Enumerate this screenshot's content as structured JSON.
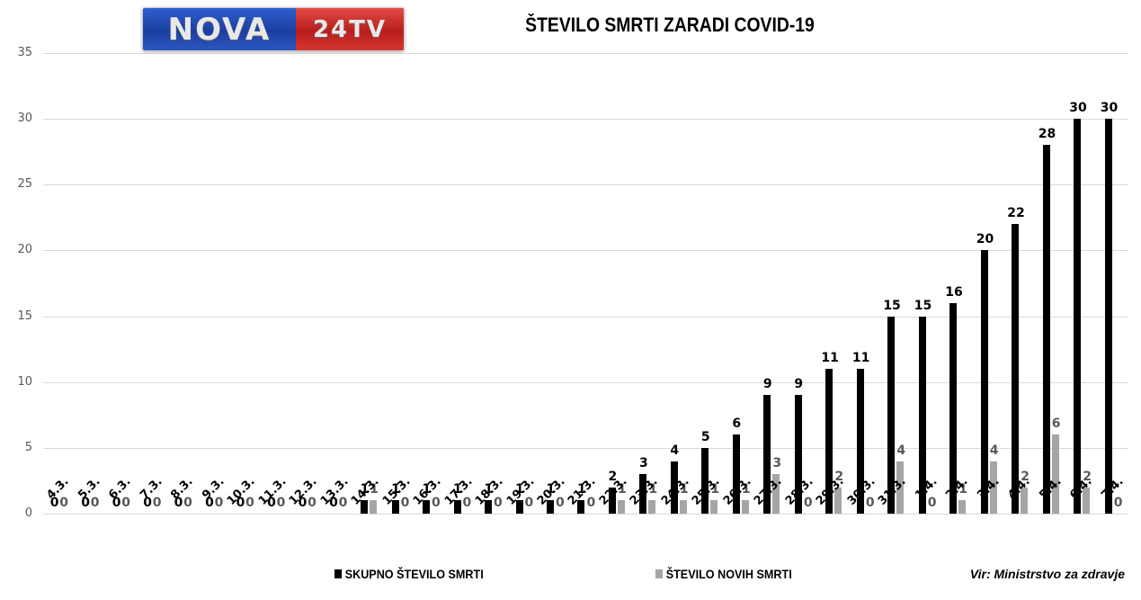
{
  "header": {
    "logo_left": "NOVA",
    "logo_right": "24TV",
    "title": "ŠTEVILO SMRTI ZARADI COVID-19"
  },
  "legend": {
    "total_label": "SKUPNO ŠTEVILO SMRTI",
    "new_label": "ŠTEVILO NOVIH SMRTI",
    "total_color": "#000000",
    "new_color": "#a5a5a5"
  },
  "source": "Vir: Ministrstvo za zdravje",
  "chart_data": {
    "type": "bar",
    "title": "ŠTEVILO SMRTI ZARADI COVID-19",
    "xlabel": "",
    "ylabel": "",
    "ylim": [
      0,
      35
    ],
    "yticks": [
      0,
      5,
      10,
      15,
      20,
      25,
      30,
      35
    ],
    "grid": true,
    "legend_position": "bottom",
    "categories": [
      "4.3.",
      "5.3.",
      "6.3.",
      "7.3.",
      "8.3.",
      "9.3.",
      "10.3.",
      "11.3.",
      "12.3.",
      "13.3.",
      "14.3.",
      "15.3.",
      "16.3.",
      "17.3.",
      "18.3.",
      "19.3.",
      "20.3.",
      "21.3.",
      "22.3.",
      "23.3.",
      "24.3.",
      "25.3.",
      "26.3.",
      "27.3.",
      "28.3.",
      "29.3.",
      "30.3.",
      "31.3.",
      "1.4.",
      "2.4.",
      "3.4.",
      "4.4.",
      "5.4.",
      "6.4.",
      "7.4."
    ],
    "series": [
      {
        "name": "SKUPNO ŠTEVILO SMRTI",
        "color": "#000000",
        "values": [
          0,
          0,
          0,
          0,
          0,
          0,
          0,
          0,
          0,
          0,
          1,
          1,
          1,
          1,
          1,
          1,
          1,
          1,
          2,
          3,
          4,
          5,
          6,
          9,
          9,
          11,
          11,
          15,
          15,
          16,
          20,
          22,
          28,
          30,
          30
        ]
      },
      {
        "name": "ŠTEVILO NOVIH SMRTI",
        "color": "#a5a5a5",
        "values": [
          0,
          0,
          0,
          0,
          0,
          0,
          0,
          0,
          0,
          0,
          1,
          0,
          0,
          0,
          0,
          0,
          0,
          0,
          1,
          1,
          1,
          1,
          1,
          3,
          0,
          2,
          0,
          4,
          0,
          1,
          4,
          2,
          6,
          2,
          0
        ]
      }
    ],
    "annotations": [
      "Vir: Ministrstvo za zdravje"
    ]
  }
}
